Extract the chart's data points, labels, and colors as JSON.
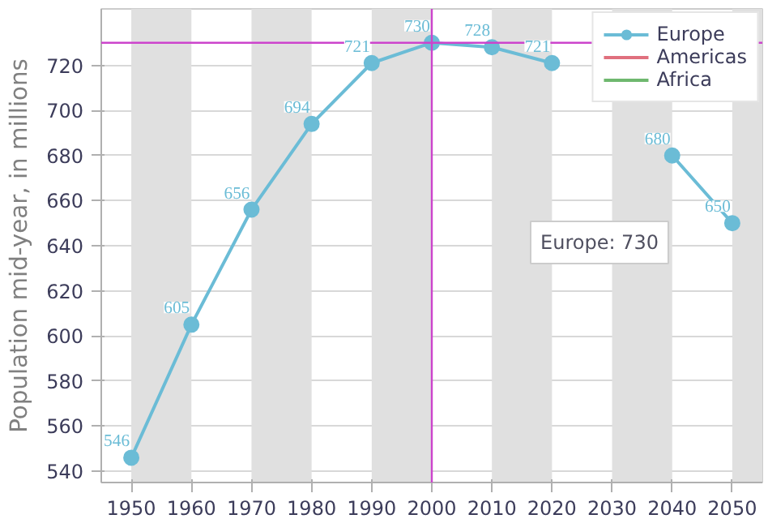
{
  "chart_data": {
    "type": "line",
    "ylabel": "Population mid-year, in millions",
    "x": [
      1950,
      1960,
      1970,
      1980,
      1990,
      2000,
      2010,
      2020,
      2030,
      2040,
      2050
    ],
    "series": [
      {
        "name": "Europe",
        "color": "#6bbcd6",
        "values": [
          546,
          605,
          656,
          694,
          721,
          730,
          728,
          721,
          null,
          680,
          650
        ]
      },
      {
        "name": "Americas",
        "color": "#e0707e",
        "values": [
          null,
          null,
          null,
          null,
          null,
          null,
          null,
          null,
          null,
          null,
          null
        ]
      },
      {
        "name": "Africa",
        "color": "#6fb86f",
        "values": [
          null,
          null,
          null,
          null,
          null,
          null,
          null,
          null,
          null,
          null,
          null
        ]
      }
    ],
    "xlim": [
      1945,
      2055
    ],
    "ylim": [
      535,
      745
    ],
    "xticks": [
      1950,
      1960,
      1970,
      1980,
      1990,
      2000,
      2010,
      2020,
      2030,
      2040,
      2050
    ],
    "yticks": [
      540,
      560,
      580,
      600,
      620,
      640,
      660,
      680,
      700,
      720
    ],
    "grid": "y",
    "marker": "circle",
    "line_style": "solid",
    "data_labels": true,
    "legend": "top right",
    "bands": [
      {
        "axis": "x",
        "from": 1950,
        "to": 1960,
        "color": "#e0e0e0"
      },
      {
        "axis": "x",
        "from": 1970,
        "to": 1980,
        "color": "#e0e0e0"
      },
      {
        "axis": "x",
        "from": 1990,
        "to": 2000,
        "color": "#e0e0e0"
      },
      {
        "axis": "x",
        "from": 2010,
        "to": 2020,
        "color": "#e0e0e0"
      },
      {
        "axis": "x",
        "from": 2030,
        "to": 2040,
        "color": "#e0e0e0"
      },
      {
        "axis": "x",
        "from": 2050,
        "to": 2055,
        "color": "#e0e0e0"
      }
    ],
    "ref_lines": [
      {
        "axis": "x",
        "value": 2000,
        "color": "#cc44cc"
      },
      {
        "axis": "y",
        "value": 730,
        "color": "#cc44cc"
      }
    ],
    "annotations": [
      "Europe: 730"
    ]
  }
}
